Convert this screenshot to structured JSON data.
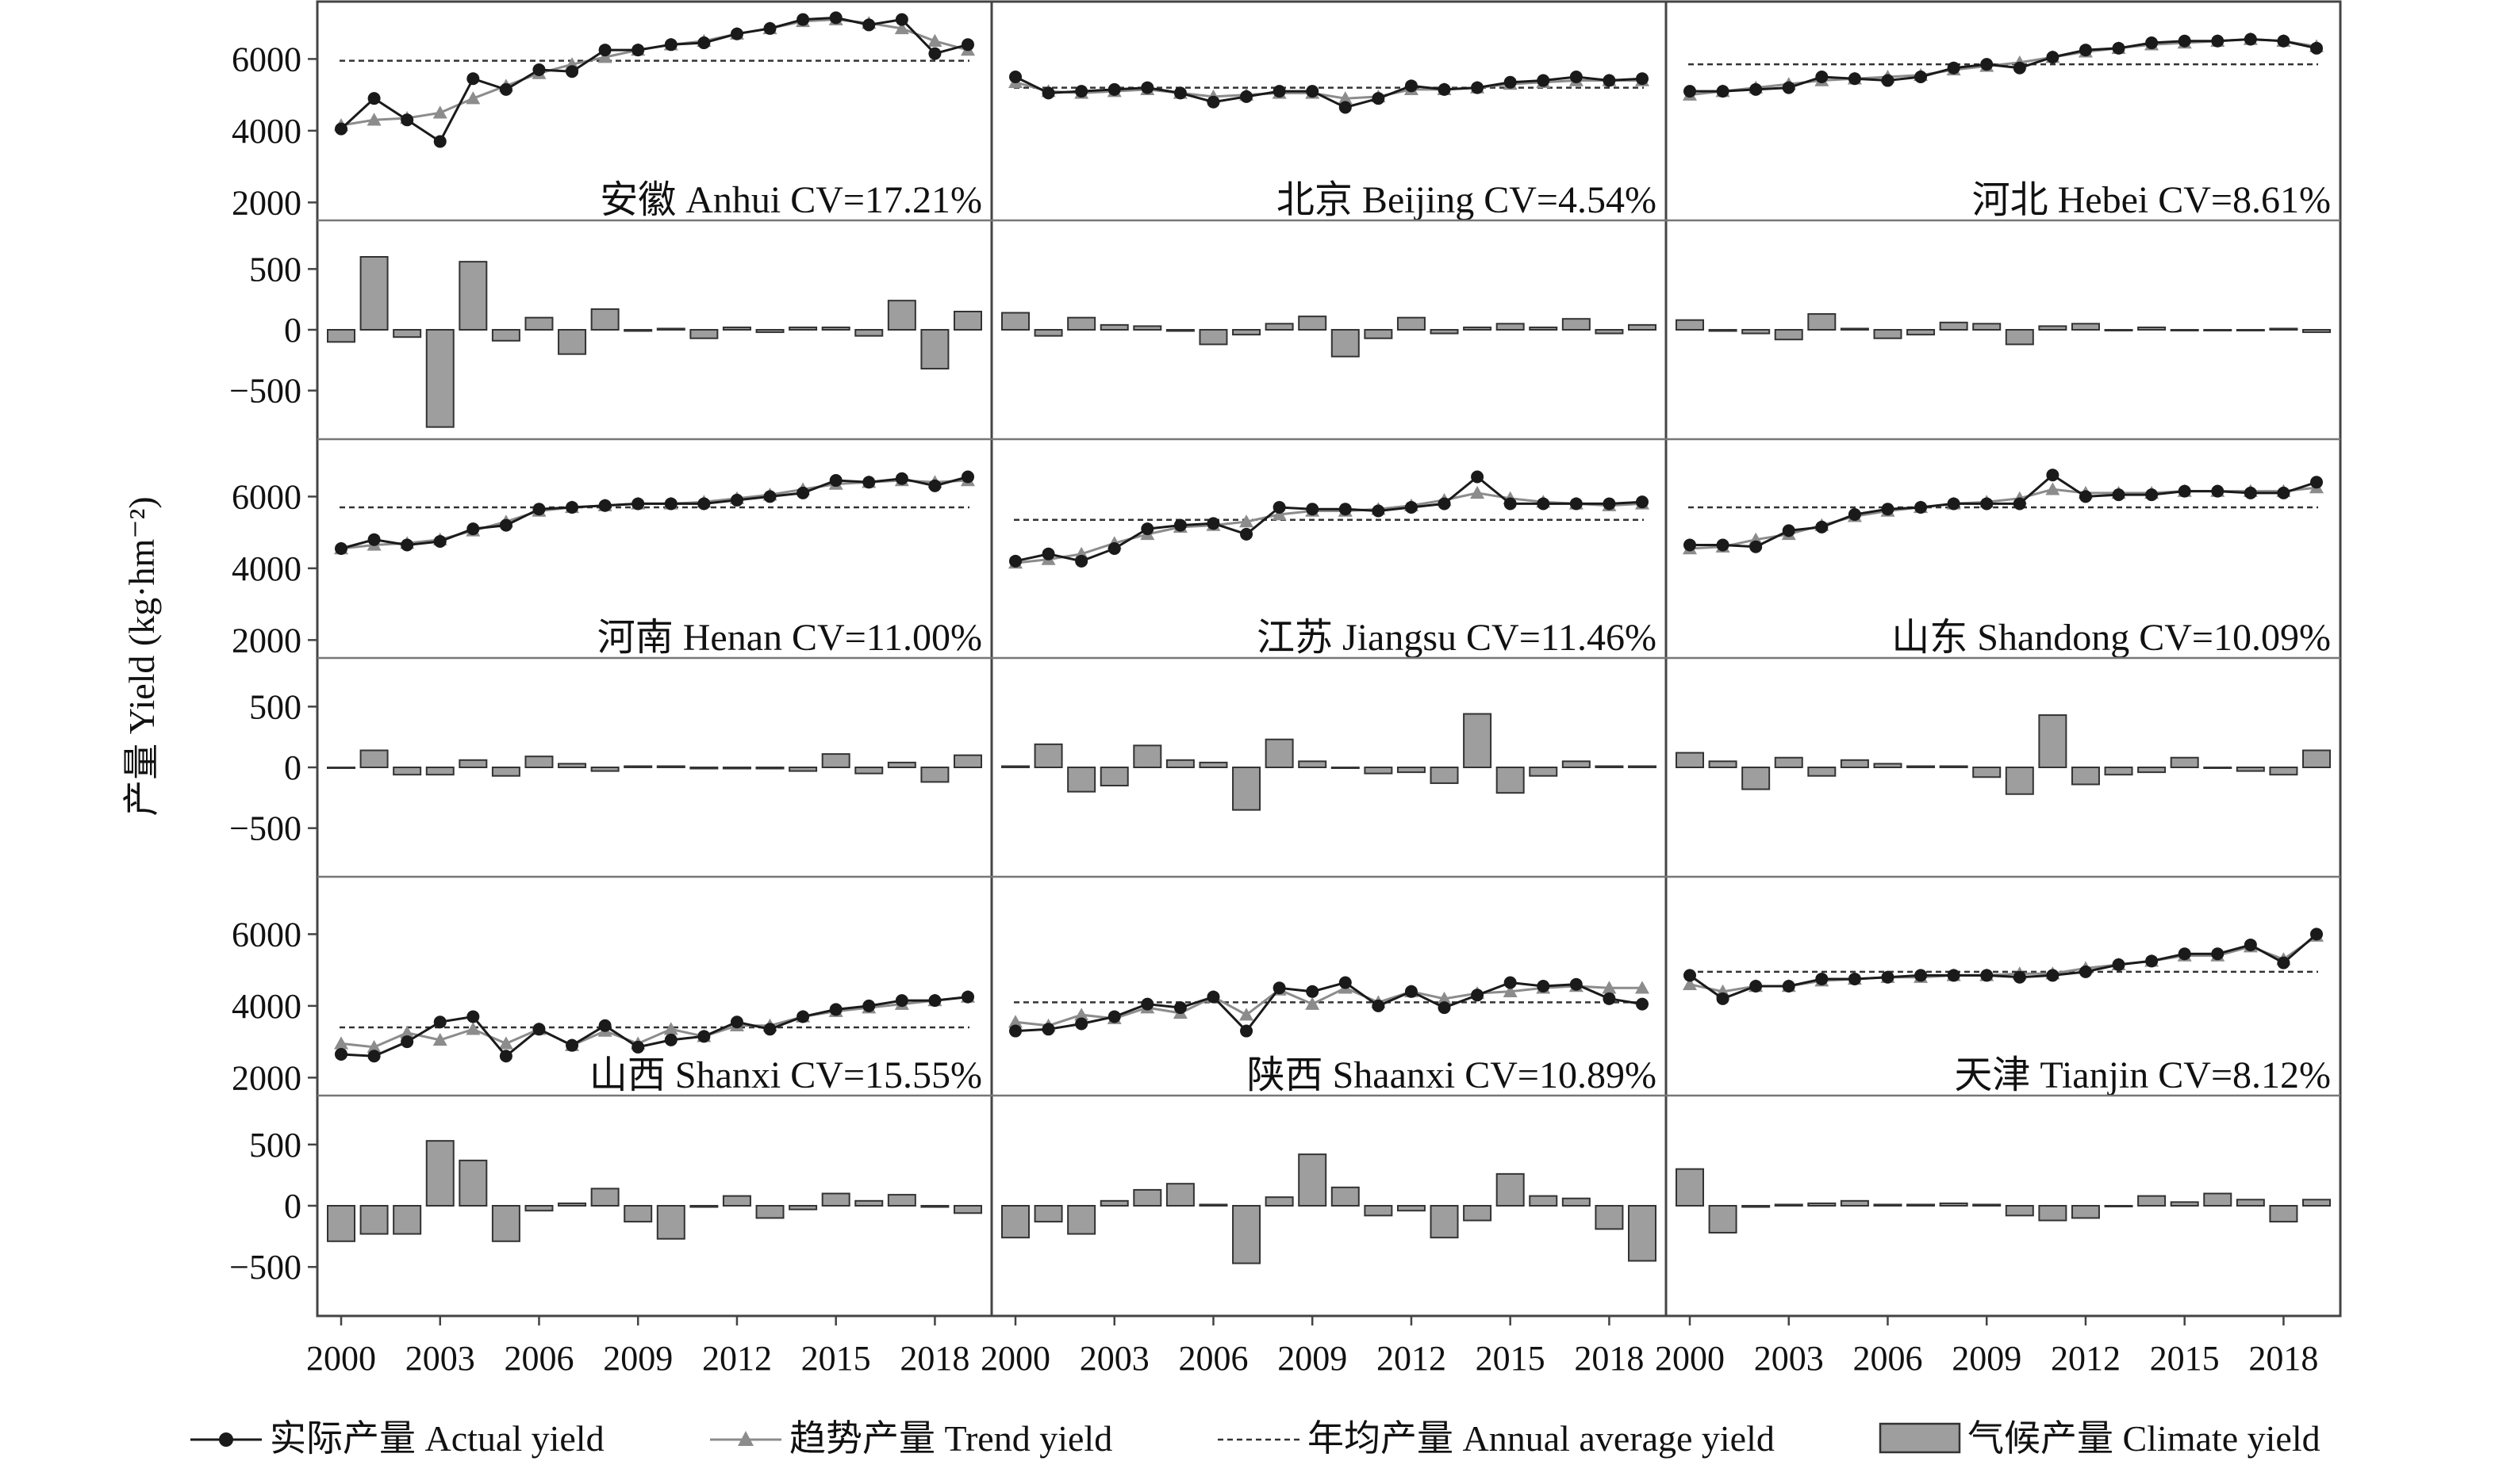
{
  "chart_data": {
    "type": "line",
    "y_axis_label": "产量 Yield (kg·hm⁻²)",
    "x_years": [
      2000,
      2001,
      2002,
      2003,
      2004,
      2005,
      2006,
      2007,
      2008,
      2009,
      2010,
      2011,
      2012,
      2013,
      2014,
      2015,
      2016,
      2017,
      2018,
      2019
    ],
    "x_tick_labels": [
      "2000",
      "2003",
      "2006",
      "2009",
      "2012",
      "2015",
      "2018"
    ],
    "yield_ylim": [
      1500,
      7600
    ],
    "yield_ticks": [
      "2000",
      "4000",
      "6000"
    ],
    "climate_ylim": [
      -900,
      900
    ],
    "climate_ticks": [
      "−500",
      "0",
      "500"
    ],
    "legend": {
      "position": "bottom",
      "actual": "实际产量 Actual yield",
      "trend": "趋势产量 Trend yield",
      "average": "年均产量 Annual average yield",
      "climate": "气候产量 Climate yield"
    },
    "colors": {
      "actual": "#1a1a1a",
      "trend": "#8c8c8c",
      "average": "#333333",
      "climate_fill": "#9e9e9e",
      "climate_stroke": "#333333",
      "frame": "#444444"
    },
    "regions": [
      {
        "label": "安徽 Anhui CV=17.21%",
        "average": 5950,
        "actual": [
          4050,
          4900,
          4300,
          3700,
          5450,
          5150,
          5700,
          5650,
          6250,
          6250,
          6400,
          6450,
          6700,
          6850,
          7100,
          7150,
          6950,
          7100,
          6150,
          6400
        ],
        "trend": [
          4150,
          4300,
          4350,
          4500,
          4900,
          5250,
          5600,
          5850,
          6050,
          6250,
          6400,
          6500,
          6700,
          6850,
          7050,
          7100,
          7000,
          6850,
          6500,
          6250
        ],
        "climate": [
          -100,
          600,
          -60,
          -800,
          560,
          -90,
          100,
          -200,
          170,
          -10,
          10,
          -70,
          20,
          -20,
          20,
          20,
          -50,
          240,
          -320,
          150
        ]
      },
      {
        "label": "北京 Beijing CV=4.54%",
        "average": 5200,
        "actual": [
          5500,
          5050,
          5100,
          5150,
          5200,
          5050,
          4800,
          4950,
          5100,
          5100,
          4650,
          4900,
          5250,
          5150,
          5200,
          5350,
          5400,
          5500,
          5400,
          5450
        ],
        "trend": [
          5350,
          5100,
          5050,
          5100,
          5150,
          5050,
          4950,
          5000,
          5050,
          5050,
          4900,
          4950,
          5150,
          5150,
          5200,
          5300,
          5350,
          5400,
          5400,
          5400
        ],
        "climate": [
          140,
          -50,
          100,
          40,
          30,
          -10,
          -120,
          -40,
          50,
          110,
          -220,
          -70,
          100,
          -30,
          20,
          50,
          20,
          90,
          -30,
          40
        ]
      },
      {
        "label": "河北 Hebei CV=8.61%",
        "average": 5850,
        "actual": [
          5100,
          5100,
          5150,
          5200,
          5500,
          5450,
          5400,
          5500,
          5750,
          5850,
          5750,
          6050,
          6250,
          6300,
          6450,
          6500,
          6500,
          6550,
          6500,
          6300
        ],
        "trend": [
          5000,
          5100,
          5200,
          5300,
          5400,
          5450,
          5500,
          5550,
          5700,
          5800,
          5900,
          6050,
          6200,
          6300,
          6400,
          6450,
          6500,
          6550,
          6500,
          6350
        ],
        "climate": [
          80,
          -10,
          -30,
          -80,
          130,
          10,
          -70,
          -40,
          60,
          50,
          -120,
          30,
          50,
          0,
          20,
          0,
          0,
          0,
          10,
          -20
        ]
      },
      {
        "label": "河南 Henan CV=11.00%",
        "average": 5700,
        "actual": [
          4550,
          4800,
          4650,
          4750,
          5100,
          5200,
          5650,
          5700,
          5750,
          5800,
          5800,
          5800,
          5900,
          6000,
          6100,
          6450,
          6400,
          6500,
          6300,
          6550
        ],
        "trend": [
          4550,
          4650,
          4700,
          4800,
          5050,
          5300,
          5600,
          5700,
          5750,
          5800,
          5800,
          5850,
          5950,
          6050,
          6200,
          6350,
          6400,
          6450,
          6400,
          6450
        ],
        "climate": [
          0,
          140,
          -60,
          -60,
          60,
          -70,
          90,
          30,
          -30,
          10,
          10,
          -10,
          -10,
          -10,
          -30,
          110,
          -50,
          40,
          -120,
          100
        ]
      },
      {
        "label": "江苏 Jiangsu CV=11.46%",
        "average": 5350,
        "actual": [
          4200,
          4400,
          4200,
          4550,
          5100,
          5200,
          5250,
          4950,
          5700,
          5650,
          5650,
          5600,
          5700,
          5800,
          6550,
          5800,
          5800,
          5800,
          5800,
          5850
        ],
        "trend": [
          4150,
          4250,
          4400,
          4700,
          4950,
          5150,
          5200,
          5300,
          5500,
          5600,
          5600,
          5650,
          5750,
          5900,
          6100,
          5950,
          5850,
          5800,
          5750,
          5800
        ],
        "climate": [
          10,
          190,
          -200,
          -150,
          180,
          60,
          40,
          -350,
          230,
          50,
          0,
          -50,
          -40,
          -130,
          440,
          -210,
          -70,
          50,
          10,
          10
        ]
      },
      {
        "label": "山东 Shandong CV=10.09%",
        "average": 5700,
        "actual": [
          4650,
          4650,
          4600,
          5050,
          5150,
          5500,
          5650,
          5700,
          5800,
          5800,
          5800,
          6600,
          6000,
          6050,
          6050,
          6150,
          6150,
          6100,
          6100,
          6400
        ],
        "trend": [
          4550,
          4600,
          4800,
          4950,
          5200,
          5450,
          5600,
          5700,
          5800,
          5850,
          5950,
          6200,
          6100,
          6100,
          6100,
          6150,
          6150,
          6150,
          6150,
          6250
        ],
        "climate": [
          120,
          50,
          -180,
          80,
          -70,
          60,
          30,
          10,
          10,
          -80,
          -220,
          430,
          -140,
          -60,
          -40,
          80,
          0,
          -30,
          -60,
          140
        ]
      },
      {
        "label": "山西 Shanxi CV=15.55%",
        "average": 3400,
        "actual": [
          2650,
          2600,
          3000,
          3550,
          3700,
          2600,
          3350,
          2900,
          3450,
          2850,
          3050,
          3150,
          3550,
          3350,
          3700,
          3900,
          4000,
          4150,
          4150,
          4250
        ],
        "trend": [
          2950,
          2850,
          3250,
          3050,
          3350,
          2950,
          3350,
          2900,
          3300,
          2950,
          3350,
          3150,
          3450,
          3450,
          3700,
          3850,
          3950,
          4050,
          4150,
          4250
        ],
        "climate": [
          -290,
          -230,
          -230,
          530,
          370,
          -290,
          -40,
          20,
          140,
          -130,
          -270,
          -10,
          80,
          -100,
          -30,
          100,
          40,
          90,
          -10,
          -60
        ]
      },
      {
        "label": "陕西 Shaanxi CV=10.89%",
        "average": 4100,
        "actual": [
          3300,
          3350,
          3500,
          3700,
          4050,
          3950,
          4250,
          3300,
          4500,
          4400,
          4650,
          4000,
          4400,
          3950,
          4300,
          4650,
          4550,
          4600,
          4200,
          4050
        ],
        "trend": [
          3550,
          3450,
          3750,
          3650,
          3950,
          3800,
          4250,
          3750,
          4450,
          4050,
          4500,
          4100,
          4400,
          4200,
          4350,
          4400,
          4500,
          4550,
          4500,
          4500
        ],
        "climate": [
          -260,
          -130,
          -230,
          40,
          130,
          180,
          10,
          -470,
          70,
          420,
          150,
          -80,
          -40,
          -260,
          -120,
          260,
          80,
          60,
          -190,
          -450
        ]
      },
      {
        "label": "天津 Tianjin CV=8.12%",
        "average": 4950,
        "actual": [
          4850,
          4200,
          4550,
          4550,
          4750,
          4750,
          4800,
          4850,
          4850,
          4850,
          4800,
          4850,
          4950,
          5150,
          5250,
          5450,
          5450,
          5700,
          5200,
          6000
        ],
        "trend": [
          4600,
          4400,
          4550,
          4550,
          4700,
          4750,
          4800,
          4800,
          4850,
          4850,
          4900,
          4900,
          5050,
          5150,
          5250,
          5400,
          5400,
          5650,
          5300,
          5950
        ],
        "climate": [
          300,
          -220,
          -10,
          10,
          20,
          40,
          10,
          10,
          20,
          10,
          -80,
          -120,
          -100,
          0,
          80,
          30,
          100,
          50,
          -130,
          50
        ]
      }
    ]
  }
}
